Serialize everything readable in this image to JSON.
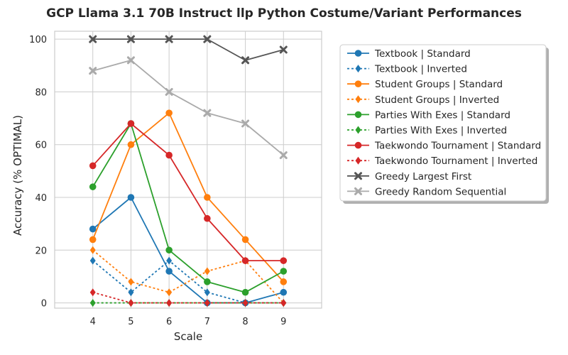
{
  "chart_data": {
    "type": "line",
    "title": "GCP Llama 3.1 70B Instruct llp Python Costume/Variant Performances",
    "xlabel": "Scale",
    "ylabel": "Accuracy (% OPTIMAL)",
    "x": [
      4,
      5,
      6,
      7,
      8,
      9
    ],
    "xlim": [
      3,
      10
    ],
    "ylim": [
      -2,
      103
    ],
    "xticks": [
      "4",
      "5",
      "6",
      "7",
      "8",
      "9"
    ],
    "yticks": [
      "0",
      "20",
      "40",
      "60",
      "80",
      "100"
    ],
    "grid": true,
    "legend_position": "outside-right",
    "series": [
      {
        "name": "Textbook | Standard",
        "color": "#1f77b4",
        "dash": "solid",
        "marker": "circle",
        "values": [
          28,
          40,
          12,
          0,
          0,
          4
        ]
      },
      {
        "name": "Textbook | Inverted",
        "color": "#1f77b4",
        "dash": "dotted",
        "marker": "diamond",
        "values": [
          16,
          4,
          16,
          4,
          0,
          0
        ]
      },
      {
        "name": "Student Groups | Standard",
        "color": "#ff7f0e",
        "dash": "solid",
        "marker": "circle",
        "values": [
          24,
          60,
          72,
          40,
          24,
          8
        ]
      },
      {
        "name": "Student Groups | Inverted",
        "color": "#ff7f0e",
        "dash": "dotted",
        "marker": "diamond",
        "values": [
          20,
          8,
          4,
          12,
          16,
          0
        ]
      },
      {
        "name": "Parties With Exes | Standard",
        "color": "#2ca02c",
        "dash": "solid",
        "marker": "circle",
        "values": [
          44,
          68,
          20,
          8,
          4,
          12
        ]
      },
      {
        "name": "Parties With Exes | Inverted",
        "color": "#2ca02c",
        "dash": "dotted",
        "marker": "diamond",
        "values": [
          0,
          0,
          0,
          0,
          0,
          0
        ]
      },
      {
        "name": "Taekwondo Tournament | Standard",
        "color": "#d62728",
        "dash": "solid",
        "marker": "circle",
        "values": [
          52,
          68,
          56,
          32,
          16,
          16
        ]
      },
      {
        "name": "Taekwondo Tournament | Inverted",
        "color": "#d62728",
        "dash": "dotted",
        "marker": "diamond",
        "values": [
          4,
          0,
          0,
          0,
          0,
          0
        ]
      },
      {
        "name": "Greedy Largest First",
        "color": "#555555",
        "dash": "solid",
        "marker": "x",
        "values": [
          100,
          100,
          100,
          100,
          92,
          96
        ]
      },
      {
        "name": "Greedy Random Sequential",
        "color": "#aaaaaa",
        "dash": "solid",
        "marker": "x",
        "values": [
          88,
          92,
          80,
          72,
          68,
          56
        ]
      }
    ]
  }
}
